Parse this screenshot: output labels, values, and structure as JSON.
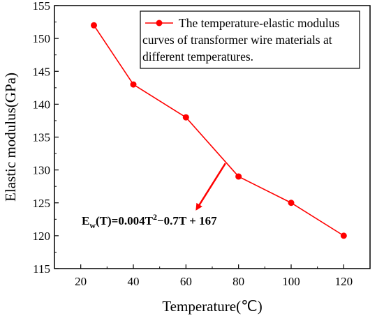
{
  "chart_data": {
    "type": "line",
    "xlabel": "Temperature(℃)",
    "ylabel": "Elastic modulus(GPa)",
    "xlim": [
      10,
      130
    ],
    "ylim": [
      115,
      155
    ],
    "xticks": [
      20,
      40,
      60,
      80,
      100,
      120
    ],
    "yticks": [
      115,
      120,
      125,
      130,
      135,
      140,
      145,
      150,
      155
    ],
    "grid": false,
    "legend_position": "top-right",
    "series": [
      {
        "name": "The temperature-elastic modulus curves of transformer wire materials at different temperatures.",
        "legend_lines": [
          "The temperature-elastic modulus",
          "curves of transformer wire materials at",
          "different temperatures."
        ],
        "color": "#ff0000",
        "x": [
          25,
          40,
          60,
          80,
          100,
          120
        ],
        "y": [
          152,
          143,
          138,
          129,
          125,
          120
        ]
      }
    ],
    "annotation": {
      "E": "E",
      "w": "w",
      "lp": "(T)=0.004T",
      "sup": "2",
      "rest": "−0.7T + 167",
      "arrow_from": [
        75,
        131
      ],
      "arrow_to": [
        64,
        124
      ]
    }
  }
}
